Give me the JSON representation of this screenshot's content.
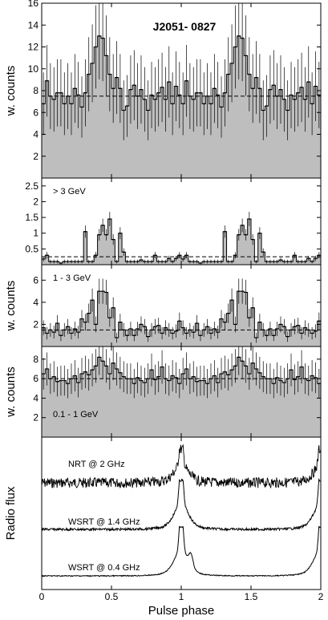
{
  "figure": {
    "title": "J2051- 0827",
    "xlabel": "Pulse phase",
    "xticks": [
      "0",
      "0.5",
      "1",
      "1.5",
      "2"
    ],
    "xlim": [
      0,
      2
    ],
    "colors": {
      "fill": "#bebebe",
      "line": "#000000",
      "dash": "#000000"
    }
  },
  "chart_data": [
    {
      "type": "bar",
      "title": "J2051- 0827",
      "ylabel": "w. counts",
      "annotation": "",
      "ylim": [
        0,
        16
      ],
      "yticks": [
        2,
        4,
        6,
        8,
        10,
        12,
        14,
        16
      ],
      "baseline": 7.5,
      "values": [
        6.8,
        8.9,
        7.5,
        7.2,
        7.8,
        7.8,
        6.8,
        7.5,
        6.8,
        8.2,
        7.6,
        6.5,
        7.8,
        9.5,
        10.5,
        12,
        13,
        12.8,
        11.2,
        9.5,
        8.2,
        9.2,
        8.2,
        6.2,
        6.6,
        8.1,
        8.5,
        7.5,
        8.1,
        7.2,
        6.2,
        7.6,
        7.2,
        7.8,
        8.3,
        7.2,
        8.8,
        6.8,
        8.4,
        7.6,
        6.8,
        8.9,
        7.5,
        7.2,
        7.8,
        7.8,
        6.8,
        7.5,
        6.8,
        8.2,
        7.6,
        6.5,
        7.8,
        9.5,
        10.5,
        12,
        13,
        12.8,
        11.2,
        9.5,
        8.2,
        9.2,
        8.2,
        6.2,
        6.6,
        8.1,
        8.5,
        7.5,
        8.1,
        7.2,
        6.2,
        7.6,
        7.2,
        7.8,
        8.3,
        7.2,
        8.8,
        6.8,
        8.4,
        7.6
      ]
    },
    {
      "type": "bar",
      "title": "",
      "ylabel": "",
      "annotation": "> 3 GeV",
      "ylim": [
        0,
        2.75
      ],
      "yticks": [
        0.5,
        1,
        1.5,
        2,
        2.5
      ],
      "baseline": 0.25,
      "values": [
        0.18,
        0.3,
        0.1,
        0.1,
        0.1,
        0.05,
        0.1,
        0.1,
        0.1,
        0.1,
        0.1,
        0.1,
        1.05,
        0.1,
        0.1,
        0.3,
        0.95,
        1.25,
        0.95,
        1.45,
        0.8,
        0.1,
        1.0,
        0.4,
        0.1,
        0.1,
        0.1,
        0.1,
        0.15,
        0.1,
        0.1,
        0.1,
        0.3,
        0.1,
        0.1,
        0.1,
        0.2,
        0.1,
        0.2,
        0.3,
        0.18,
        0.3,
        0.1,
        0.1,
        0.1,
        0.05,
        0.1,
        0.1,
        0.1,
        0.1,
        0.1,
        0.1,
        1.05,
        0.1,
        0.1,
        0.3,
        0.95,
        1.25,
        0.95,
        1.45,
        0.8,
        0.1,
        1.0,
        0.4,
        0.1,
        0.1,
        0.1,
        0.1,
        0.15,
        0.1,
        0.1,
        0.1,
        0.3,
        0.1,
        0.1,
        0.1,
        0.2,
        0.1,
        0.2,
        0.3
      ]
    },
    {
      "type": "bar",
      "title": "",
      "ylabel": "w. counts",
      "annotation": "1 - 3 GeV",
      "ylim": [
        0,
        7.4
      ],
      "yticks": [
        2,
        4,
        6
      ],
      "baseline": 1.5,
      "values": [
        1.7,
        1.2,
        1.5,
        1.3,
        2.1,
        1.0,
        1.5,
        1.8,
        1.2,
        1.6,
        1.3,
        2.5,
        2.2,
        3.0,
        4.2,
        2.0,
        5.0,
        5.0,
        4.9,
        2.6,
        3.5,
        0.8,
        2.2,
        1.5,
        1.0,
        1.6,
        1.0,
        1.6,
        2.0,
        1.8,
        0.9,
        1.5,
        1.8,
        1.9,
        1.2,
        1.7,
        1.5,
        1.2,
        1.4,
        2.3,
        1.7,
        1.2,
        1.5,
        1.3,
        2.1,
        1.0,
        1.5,
        1.8,
        1.2,
        1.6,
        1.3,
        2.5,
        2.2,
        3.0,
        4.2,
        2.0,
        5.0,
        5.0,
        4.9,
        2.6,
        3.5,
        0.8,
        2.2,
        1.5,
        1.0,
        1.6,
        1.0,
        1.6,
        2.0,
        1.8,
        0.9,
        1.5,
        1.8,
        1.9,
        1.2,
        1.7,
        1.5,
        1.2,
        1.4,
        2.3
      ]
    },
    {
      "type": "bar",
      "title": "",
      "ylabel": "w. counts",
      "annotation": "0.1 - 1 GeV",
      "ylim": [
        0,
        9.3
      ],
      "yticks": [
        2,
        4,
        6,
        8
      ],
      "baseline": 6.0,
      "values": [
        6.5,
        7.0,
        6.0,
        6.2,
        5.7,
        5.8,
        5.8,
        5.5,
        6.0,
        6.3,
        5.6,
        6.5,
        6.7,
        6.4,
        6.9,
        7.3,
        8.2,
        7.8,
        7.3,
        6.5,
        7.6,
        7.0,
        6.6,
        6.2,
        6.0,
        6.0,
        5.5,
        6.1,
        5.8,
        5.6,
        6.0,
        6.9,
        5.9,
        6.2,
        7.2,
        6.0,
        5.8,
        6.3,
        6.1,
        5.5,
        6.5,
        7.0,
        6.0,
        6.2,
        5.7,
        5.8,
        5.8,
        5.5,
        6.0,
        6.3,
        5.6,
        6.5,
        6.7,
        6.4,
        6.9,
        7.3,
        8.2,
        7.8,
        7.3,
        6.5,
        7.6,
        7.0,
        6.6,
        6.2,
        6.0,
        6.0,
        5.5,
        6.1,
        5.8,
        5.6,
        6.0,
        6.9,
        5.9,
        6.2,
        7.2,
        6.0,
        5.8,
        6.3,
        6.1,
        5.5
      ]
    },
    {
      "type": "line",
      "title": "",
      "ylabel": "Radio flux",
      "series": [
        {
          "name": "NRT @ 2 GHz",
          "peak_phase": [
            1.0,
            2.0
          ]
        },
        {
          "name": "WSRT @ 1.4 GHz",
          "peak_phase": [
            1.0,
            2.0
          ]
        },
        {
          "name": "WSRT @ 0.4 GHz",
          "peak_phase": [
            1.0,
            2.0
          ]
        }
      ]
    }
  ]
}
